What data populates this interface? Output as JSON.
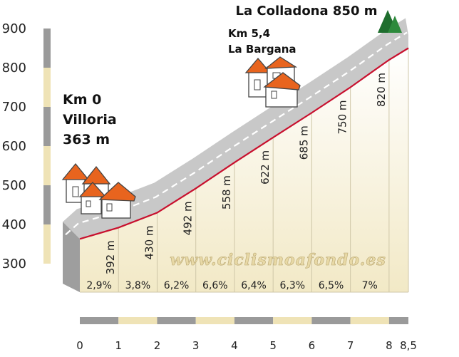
{
  "chart_data": {
    "type": "area",
    "summit_label": "La Colladona 850 m",
    "start_label": [
      "Km 0",
      "Villoria",
      "363 m"
    ],
    "mid_label": [
      "Km 5,4",
      "La Bargana"
    ],
    "watermark": "www.ciclismoafondo.es",
    "y_ticks": [
      "900",
      "800",
      "700",
      "600",
      "500",
      "400",
      "300"
    ],
    "ylim": [
      300,
      900
    ],
    "x_ticks": [
      "0",
      "1",
      "2",
      "3",
      "4",
      "5",
      "6",
      "7",
      "8",
      "8,5"
    ],
    "xlim": [
      0,
      8.5
    ],
    "profile": [
      {
        "km": 0,
        "elev": 363
      },
      {
        "km": 1,
        "elev": 392
      },
      {
        "km": 2,
        "elev": 430
      },
      {
        "km": 3,
        "elev": 492
      },
      {
        "km": 4,
        "elev": 558
      },
      {
        "km": 5,
        "elev": 622
      },
      {
        "km": 6,
        "elev": 685
      },
      {
        "km": 7,
        "elev": 750
      },
      {
        "km": 8,
        "elev": 820
      },
      {
        "km": 8.5,
        "elev": 850
      }
    ],
    "elevation_labels": [
      "392 m",
      "430 m",
      "492 m",
      "558 m",
      "622 m",
      "685 m",
      "750 m",
      "820 m"
    ],
    "gradients": [
      "2,9%",
      "3,8%",
      "6,2%",
      "6,6%",
      "6,4%",
      "6,3%",
      "6,5%",
      "7%"
    ],
    "colors": {
      "profile_line": "#c8102e",
      "road": "#c8c8c8",
      "road_shadow": "#9e9e9e",
      "fill": "#f2e9c6",
      "axis_gray": "#9a9a9a",
      "axis_cream": "#efe3b6",
      "roof": "#e8641e",
      "trees": "#1f6e2e"
    }
  }
}
